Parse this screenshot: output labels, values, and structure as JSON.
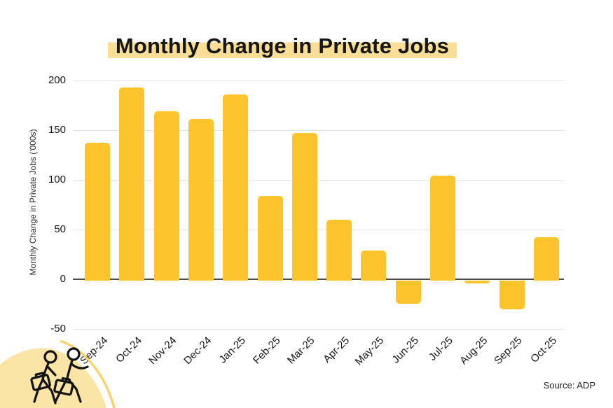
{
  "title": {
    "text": "Monthly Change in Private Jobs"
  },
  "source": {
    "label": "Source: ADP"
  },
  "colors": {
    "bar": "#FDC42B",
    "title_highlight": "#FADE96",
    "gridline": "#E2E2E2",
    "zero_line": "#4D4D4D",
    "text": "#1A1A1A",
    "corner_blob_fill": "#FAE4A6",
    "corner_arc": "#F8D36E",
    "icon_outline": "#141414"
  },
  "decoration": {
    "icon": "walking-people-with-briefcases-icon"
  },
  "chart_data": {
    "type": "bar",
    "title": "Monthly Change in Private Jobs",
    "categories": [
      "Sep-24",
      "Oct-24",
      "Nov-24",
      "Dec-24",
      "Jan-25",
      "Feb-25",
      "Mar-25",
      "Apr-25",
      "May-25",
      "Jun-25",
      "Jul-25",
      "Aug-25",
      "Sep-25",
      "Oct-25"
    ],
    "values": [
      137,
      193,
      169,
      161,
      186,
      84,
      147,
      60,
      29,
      -23,
      104,
      -3,
      -29,
      42
    ],
    "xlabel": "",
    "ylabel": "Monthly Change in Private Jobs ('000s)",
    "ylim": [
      -50,
      200
    ],
    "yticks": [
      200,
      150,
      100,
      50,
      0,
      -50
    ],
    "grid": true,
    "legend": "none",
    "bar_color": "#FDC42B",
    "x_tick_rotation_deg": 45
  }
}
